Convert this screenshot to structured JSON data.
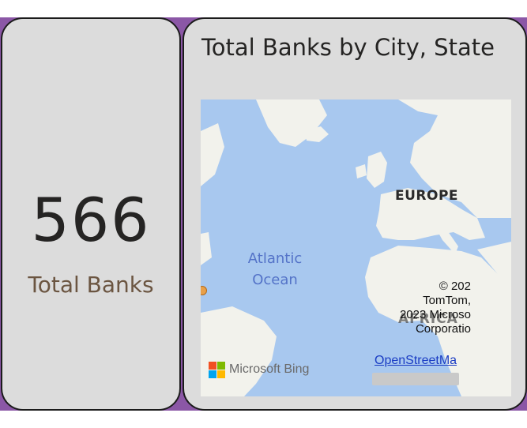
{
  "kpi_card": {
    "value": "566",
    "label": "Total Banks"
  },
  "map_card": {
    "title": "Total Banks by City, State",
    "labels": {
      "europe": "EUROPE",
      "ocean_line1": "Atlantic",
      "ocean_line2": "Ocean",
      "africa": "AFRICA"
    },
    "attribution_lines": [
      "© 202",
      "TomTom,",
      "2023 Microso",
      "Corporatio"
    ],
    "osm_link": "OpenStreetMa",
    "bing_logo_text": "Microsoft Bing",
    "icons": [
      "microsoft-logo-icon",
      "map-marker-icon"
    ]
  },
  "colors": {
    "background_accent": "#8b57a6",
    "card_bg": "#dcdcdc",
    "water": "#a8c8ef",
    "land": "#f2f2ec"
  }
}
